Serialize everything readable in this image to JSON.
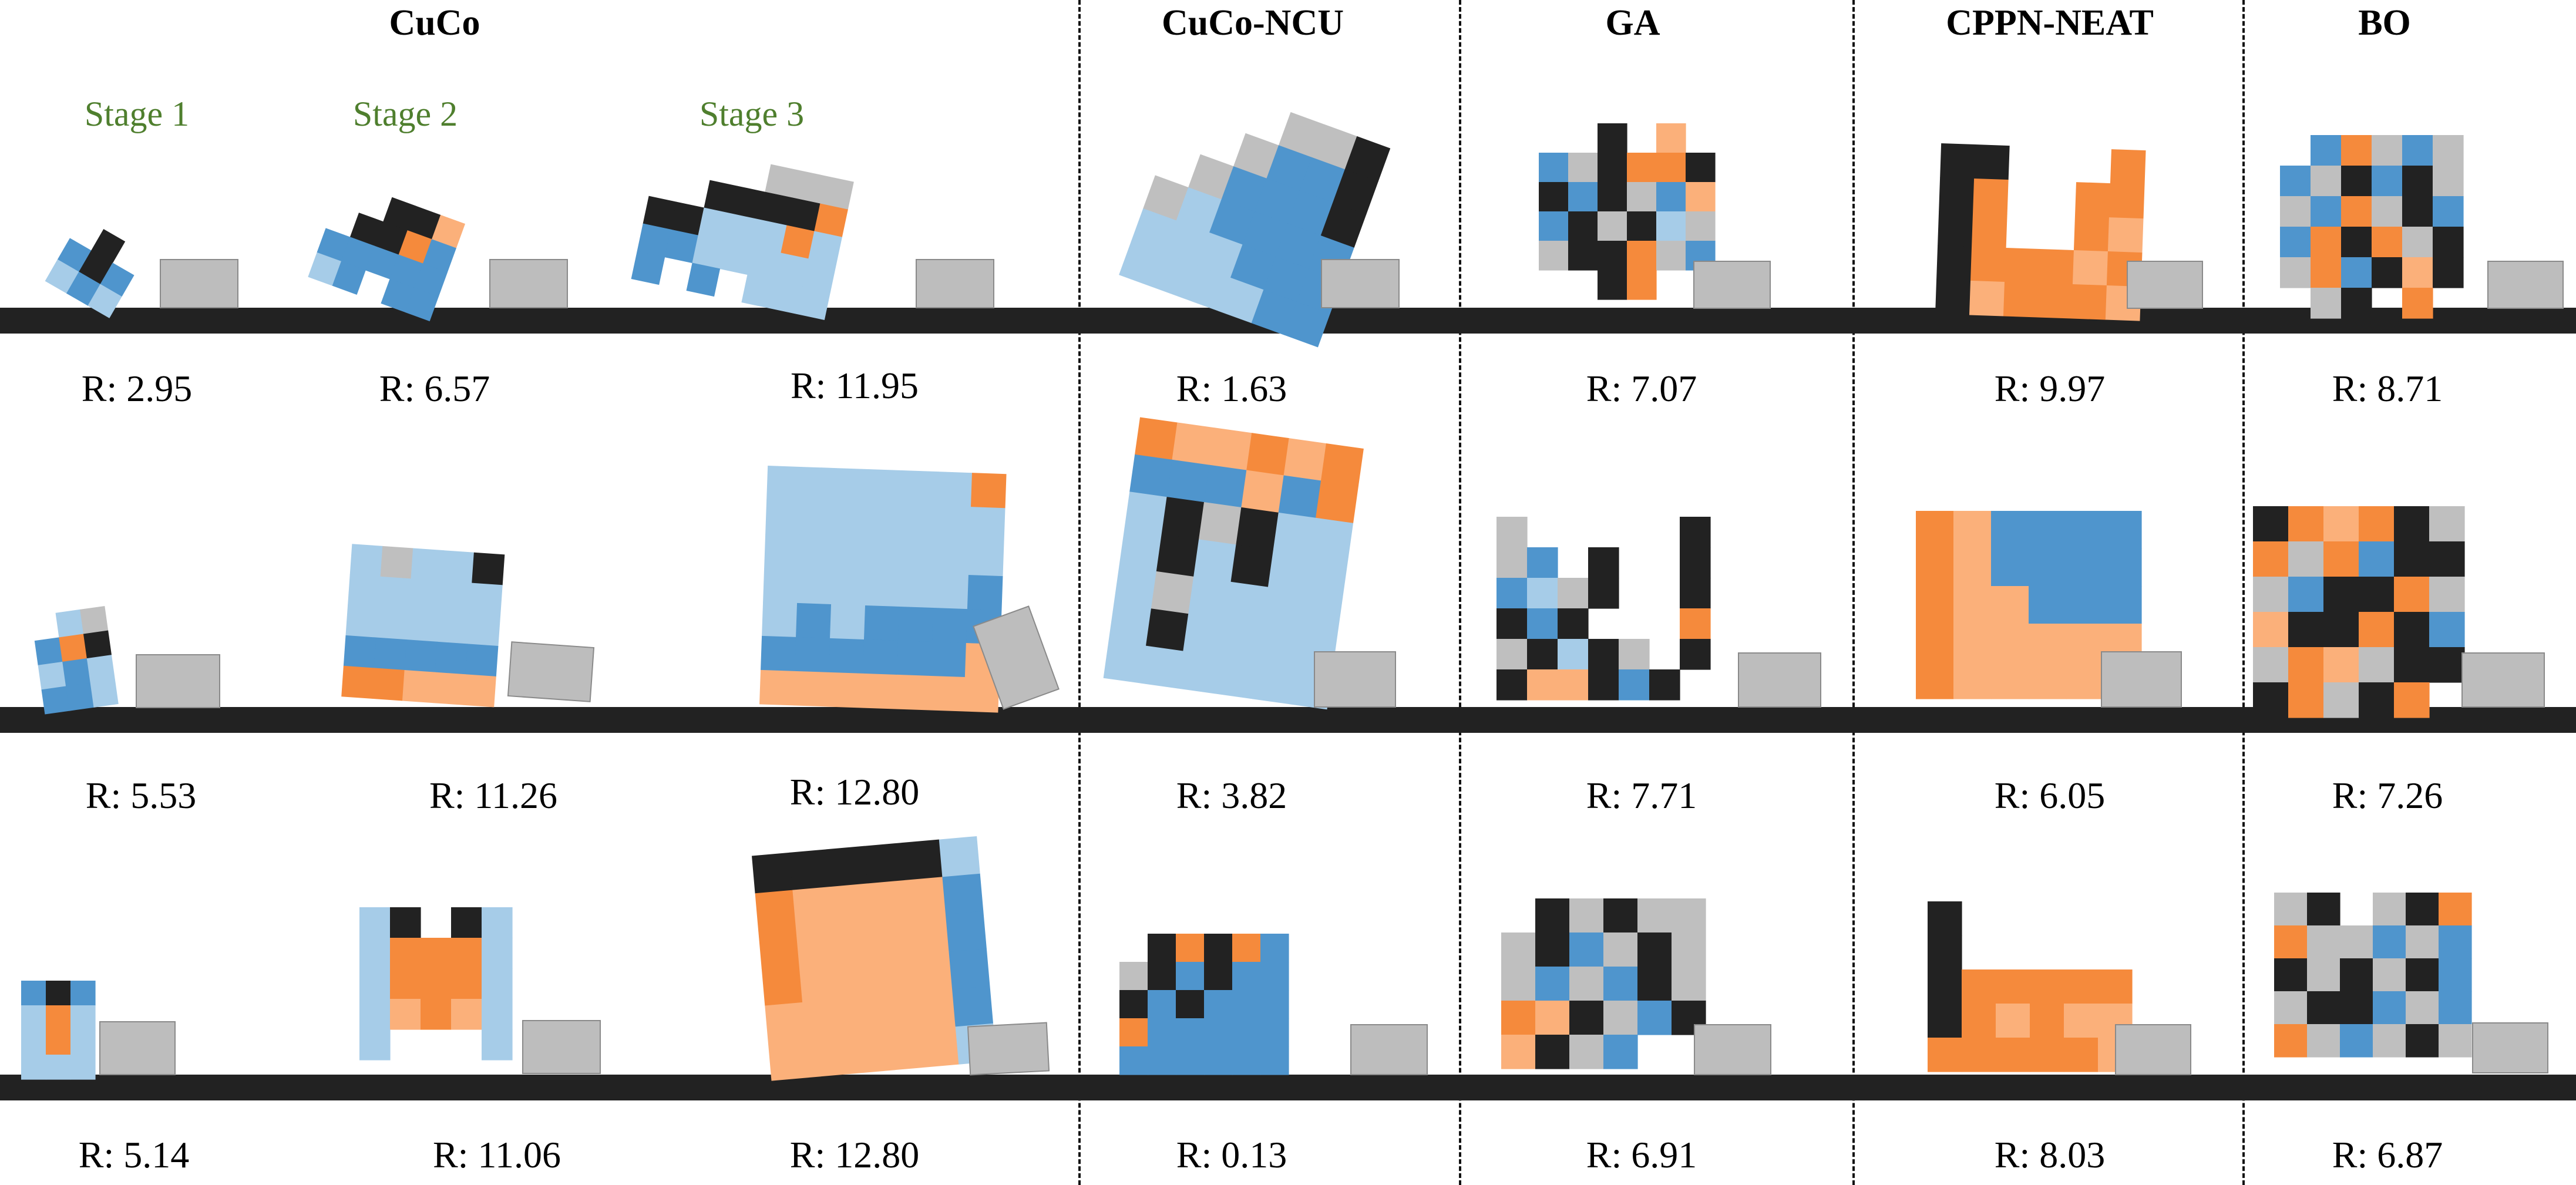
{
  "figure": {
    "columns": [
      {
        "id": "cuco",
        "label": "CuCo"
      },
      {
        "id": "cuco-ncu",
        "label": "CuCo-NCU"
      },
      {
        "id": "ga",
        "label": "GA"
      },
      {
        "id": "cppn-neat",
        "label": "CPPN-NEAT"
      },
      {
        "id": "bo",
        "label": "BO"
      }
    ],
    "stages": [
      "Stage 1",
      "Stage 2",
      "Stage 3"
    ],
    "rows": [
      {
        "rewards": [
          "R: 2.95",
          "R: 6.57",
          "R: 11.95",
          "R: 1.63",
          "R: 7.07",
          "R: 9.97",
          "R: 8.71"
        ]
      },
      {
        "rewards": [
          "R: 5.53",
          "R: 11.26",
          "R: 12.80",
          "R: 3.82",
          "R: 7.71",
          "R: 6.05",
          "R: 7.26"
        ]
      },
      {
        "rewards": [
          "R: 5.14",
          "R: 11.06",
          "R: 12.80",
          "R: 0.13",
          "R: 6.91",
          "R: 8.03",
          "R: 6.87"
        ]
      }
    ],
    "colors": {
      "rigid": "#222222",
      "soft": "#bfbfbf",
      "actuator_h": "#f58a3c",
      "actuator_h_light": "#fbb07a",
      "actuator_v": "#4f95cd",
      "actuator_v_light": "#a6cce8",
      "ground": "#222222",
      "box": "#bdbdbd",
      "stage_text": "#4f7f2e"
    }
  }
}
